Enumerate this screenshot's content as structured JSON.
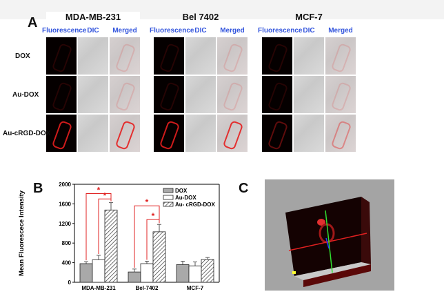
{
  "panel_a": {
    "label": "A",
    "groups": [
      {
        "title": "MDA-MB-231"
      },
      {
        "title": "Bel 7402"
      },
      {
        "title": "MCF-7"
      }
    ],
    "columns": [
      "Fluorescence",
      "DIC",
      "Merged"
    ],
    "rows": [
      "DOX",
      "Au-DOX",
      "Au-cRGD-DOX"
    ]
  },
  "panel_b": {
    "label": "B"
  },
  "panel_c": {
    "label": "C"
  },
  "chart_data": {
    "type": "bar",
    "title": "",
    "xlabel": "",
    "ylabel": "Mean Fluorescece Intensity",
    "categories": [
      "MDA-MB-231",
      "Bel-7402",
      "MCF-7"
    ],
    "ylim": [
      0,
      2000
    ],
    "yticks": [
      0,
      400,
      800,
      1200,
      1600,
      2000
    ],
    "legend": "top-right",
    "series": [
      {
        "name": "DOX",
        "values": [
          380,
          210,
          360
        ],
        "errors": [
          40,
          60,
          70
        ],
        "color": "#a9a9a9",
        "pattern": "solid"
      },
      {
        "name": "Au-DOX",
        "values": [
          460,
          380,
          335
        ],
        "errors": [
          90,
          50,
          80
        ],
        "color": "#ffffff",
        "pattern": "solid"
      },
      {
        "name": "Au- cRGD-DOX",
        "values": [
          1475,
          1030,
          465
        ],
        "errors": [
          150,
          150,
          40
        ],
        "color": "#ffffff",
        "pattern": "hatched"
      }
    ],
    "significance_marker": "*",
    "significance_color": "#e02020"
  }
}
